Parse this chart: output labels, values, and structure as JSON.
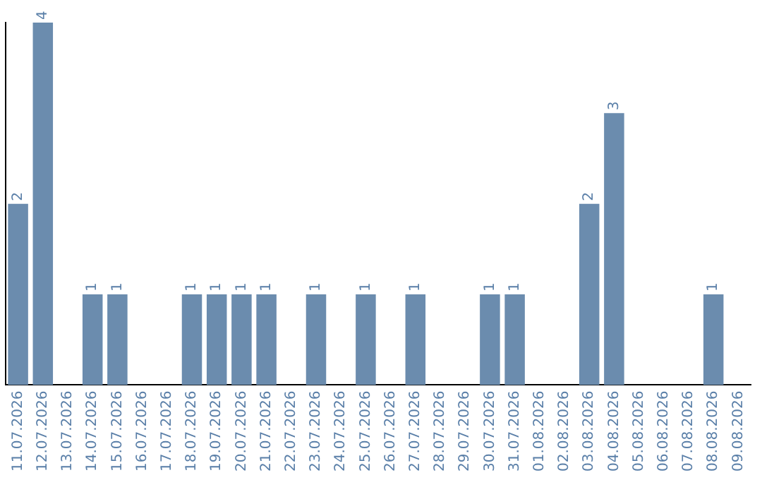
{
  "chart_data": {
    "type": "bar",
    "categories": [
      "11.07.2026",
      "12.07.2026",
      "13.07.2026",
      "14.07.2026",
      "15.07.2026",
      "16.07.2026",
      "17.07.2026",
      "18.07.2026",
      "19.07.2026",
      "20.07.2026",
      "21.07.2026",
      "22.07.2026",
      "23.07.2026",
      "24.07.2026",
      "25.07.2026",
      "26.07.2026",
      "27.07.2026",
      "28.07.2026",
      "29.07.2026",
      "30.07.2026",
      "31.07.2026",
      "01.08.2026",
      "02.08.2026",
      "03.08.2026",
      "04.08.2026",
      "05.08.2026",
      "06.08.2026",
      "07.08.2026",
      "08.08.2026",
      "09.08.2026"
    ],
    "values": [
      2,
      4,
      0,
      1,
      1,
      0,
      0,
      1,
      1,
      1,
      1,
      0,
      1,
      0,
      1,
      0,
      1,
      0,
      0,
      1,
      1,
      0,
      0,
      2,
      3,
      0,
      0,
      0,
      1,
      0
    ],
    "value_labels": [
      "2",
      "4",
      null,
      "1",
      "1",
      null,
      null,
      "1",
      "1",
      "1",
      "1",
      null,
      "1",
      null,
      "1",
      null,
      "1",
      null,
      null,
      "1",
      "1",
      null,
      null,
      "2",
      "3",
      null,
      null,
      null,
      "1",
      null
    ],
    "color": "#6b8cae",
    "grid": false,
    "legend": false,
    "tick_labels": "x"
  }
}
